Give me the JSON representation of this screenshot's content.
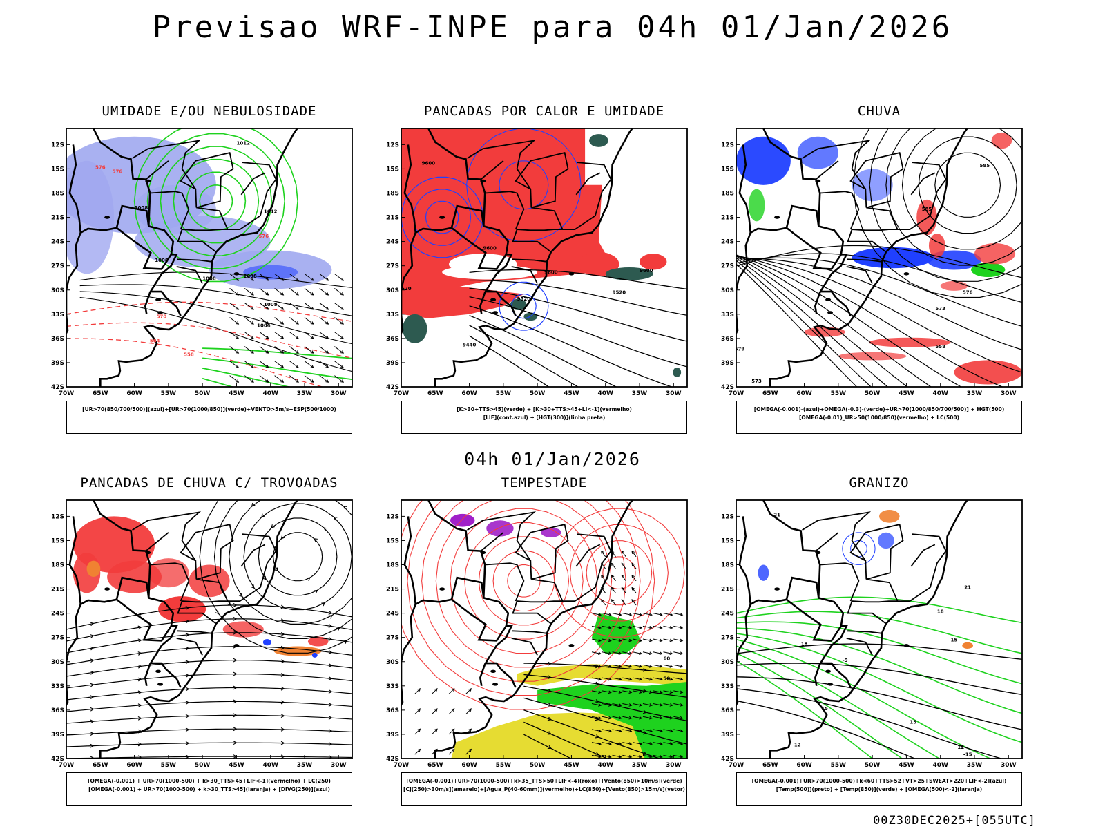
{
  "title": "Previsao WRF-INPE  para 04h 01/Jan/2026",
  "mid_date": "04h 01/Jan/2026",
  "footer": "00Z30DEC2025+[055UTC]",
  "colors": {
    "red": "#f23c3c",
    "blue": "#2040ff",
    "green": "#1ed21e",
    "lav": "#a0a8f0",
    "yellow": "#e6dc32",
    "purple": "#a020c8",
    "orange": "#f08232",
    "teal": "#2d5a50"
  },
  "chart_data": [
    {
      "type": "heatmap",
      "title": "UMIDADE E/OU NEBULOSIDADE",
      "legend": [
        "[UR>70(850/700/500)](azul)+[UR>70(1000/850)](verde)+VENTO>5m/s+ESP(500/1000)"
      ],
      "x_ticks": [
        "70W",
        "65W",
        "60W",
        "55W",
        "50W",
        "45W",
        "40W",
        "35W",
        "30W"
      ],
      "y_ticks": [
        "12S",
        "15S",
        "18S",
        "21S",
        "24S",
        "27S",
        "30S",
        "33S",
        "36S",
        "39S",
        "42S"
      ],
      "contour_labels": [
        "1012",
        "1012",
        "1008",
        "1008",
        "1008",
        "1008",
        "1008",
        "1004",
        "576",
        "576",
        "576",
        "570",
        "564",
        "558"
      ],
      "xlim": [
        -70,
        -28
      ],
      "ylim": [
        -42,
        -10
      ]
    },
    {
      "type": "heatmap",
      "title": "PANCADAS POR CALOR E UMIDADE",
      "legend": [
        "[K>30+TTS>45](verde) + [K>30+TTS>45+LI<-1](vermelho)",
        "[LIF](cont.azul) + [HGT(300)](linha preta)"
      ],
      "x_ticks": [
        "70W",
        "65W",
        "60W",
        "55W",
        "50W",
        "45W",
        "40W",
        "35W",
        "30W"
      ],
      "y_ticks": [
        "12S",
        "15S",
        "18S",
        "21S",
        "24S",
        "27S",
        "30S",
        "33S",
        "36S",
        "39S",
        "42S"
      ],
      "contour_labels": [
        "9600",
        "9600",
        "9600",
        "9600",
        "9520",
        "9520",
        "9520",
        "9440"
      ],
      "xlim": [
        -70,
        -28
      ],
      "ylim": [
        -42,
        -10
      ]
    },
    {
      "type": "heatmap",
      "title": "CHUVA",
      "legend": [
        "[OMEGA(-0.001)-(azul)+OMEGA(-0.3)-(verde)+UR>70(1000/850/700/500)] + HGT(500)",
        "[OMEGA(-0.01)_UR>50(1000/850)(vermelho) + LC(500)"
      ],
      "x_ticks": [
        "70W",
        "65W",
        "60W",
        "55W",
        "50W",
        "45W",
        "40W",
        "35W",
        "30W"
      ],
      "y_ticks": [
        "12S",
        "15S",
        "18S",
        "21S",
        "24S",
        "27S",
        "30S",
        "33S",
        "36S",
        "39S",
        "42S"
      ],
      "contour_labels": [
        "585",
        "585",
        "579",
        "576",
        "573",
        "558",
        "573"
      ],
      "xlim": [
        -70,
        -28
      ],
      "ylim": [
        -42,
        -10
      ]
    },
    {
      "type": "heatmap",
      "title": "PANCADAS DE CHUVA C/ TROVOADAS",
      "legend": [
        "[OMEGA(-0.001) + UR>70(1000-500) + k>30_TTS>45+LIF<-1](vermelho) + LC(250)",
        "[OMEGA(-0.001) + UR>70(1000-500) + k>30_TTS>45](laranja) + [DIVG(250)](azul)"
      ],
      "x_ticks": [
        "70W",
        "65W",
        "60W",
        "55W",
        "50W",
        "45W",
        "40W",
        "35W",
        "30W"
      ],
      "y_ticks": [
        "12S",
        "15S",
        "18S",
        "21S",
        "24S",
        "27S",
        "30S",
        "33S",
        "36S",
        "39S",
        "42S"
      ],
      "contour_labels": [],
      "xlim": [
        -70,
        -28
      ],
      "ylim": [
        -42,
        -10
      ]
    },
    {
      "type": "heatmap",
      "title": "TEMPESTADE",
      "legend": [
        "[OMEGA(-0.001)+UR>70(1000-500)+k>35_TTS>50+LIF<-4](roxo)+[Vento(850)>10m/s](verde)",
        "[CJ(250)>30m/s](amarelo)+[Agua_P(40-60mm)](vermelho)+LC(850)+[Vento(850)>15m/s](vetor)"
      ],
      "x_ticks": [
        "70W",
        "65W",
        "60W",
        "55W",
        "50W",
        "45W",
        "40W",
        "35W",
        "30W"
      ],
      "y_ticks": [
        "12S",
        "15S",
        "18S",
        "21S",
        "24S",
        "27S",
        "30S",
        "33S",
        "36S",
        "39S",
        "42S"
      ],
      "contour_labels": [
        "60",
        "50"
      ],
      "xlim": [
        -70,
        -28
      ],
      "ylim": [
        -42,
        -10
      ]
    },
    {
      "type": "heatmap",
      "title": "GRANIZO",
      "legend": [
        "[OMEGA(-0.001)+UR>70(1000-500)+k<60+TTS>52+VT>25+SWEAT>220+LIF<-2](azul)",
        "[Temp(500)](preto) + [Temp(850)](verde) + [OMEGA(500)<-2](laranja)"
      ],
      "x_ticks": [
        "70W",
        "65W",
        "60W",
        "55W",
        "50W",
        "45W",
        "40W",
        "35W",
        "30W"
      ],
      "y_ticks": [
        "12S",
        "15S",
        "18S",
        "21S",
        "24S",
        "27S",
        "30S",
        "33S",
        "36S",
        "39S",
        "42S"
      ],
      "contour_labels": [
        "21",
        "21",
        "18",
        "18",
        "15",
        "15",
        "15",
        "12",
        "12",
        "-15",
        "-9"
      ],
      "xlim": [
        -70,
        -28
      ],
      "ylim": [
        -42,
        -10
      ]
    }
  ]
}
